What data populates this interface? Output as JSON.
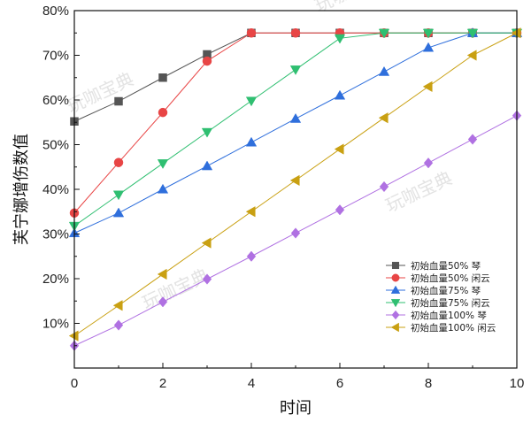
{
  "chart_data": {
    "type": "line",
    "title": "",
    "xlabel": "时间",
    "ylabel": "芙宁娜增伤数值",
    "xlim": [
      0,
      10
    ],
    "ylim": [
      0.0,
      0.8
    ],
    "x_ticks": [
      "0",
      "2",
      "4",
      "6",
      "8",
      "10"
    ],
    "y_ticks": [
      "10%",
      "20%",
      "30%",
      "40%",
      "50%",
      "60%",
      "70%",
      "80%"
    ],
    "grid": false,
    "legend_position": "lower-right",
    "series": [
      {
        "name": "初始血量50% 琴",
        "color": "#555555",
        "marker": "square",
        "x": [
          0,
          1,
          2,
          3,
          4,
          5,
          6,
          7,
          8,
          9,
          10
        ],
        "y": [
          0.552,
          0.597,
          0.65,
          0.702,
          0.75,
          0.75,
          0.75,
          0.75,
          0.75,
          0.75,
          0.75
        ]
      },
      {
        "name": "初始血量50% 闲云",
        "color": "#e84545",
        "marker": "circle",
        "x": [
          0,
          1,
          2,
          3,
          4,
          5,
          6,
          7,
          8,
          9,
          10
        ],
        "y": [
          0.347,
          0.46,
          0.572,
          0.687,
          0.75,
          0.75,
          0.75,
          0.75,
          0.75,
          0.75,
          0.75
        ]
      },
      {
        "name": "初始血量75% 琴",
        "color": "#2f6fdc",
        "marker": "triangle-up",
        "x": [
          0,
          1,
          2,
          3,
          4,
          5,
          6,
          7,
          8,
          9,
          10
        ],
        "y": [
          0.302,
          0.347,
          0.4,
          0.452,
          0.505,
          0.558,
          0.61,
          0.663,
          0.717,
          0.75,
          0.75
        ]
      },
      {
        "name": "初始血量75% 闲云",
        "color": "#2fbf71",
        "marker": "triangle-down",
        "x": [
          0,
          1,
          2,
          3,
          4,
          5,
          6,
          7,
          8,
          9,
          10
        ],
        "y": [
          0.318,
          0.388,
          0.458,
          0.528,
          0.598,
          0.668,
          0.738,
          0.75,
          0.75,
          0.75,
          0.75
        ]
      },
      {
        "name": "初始血量100% 琴",
        "color": "#b071e2",
        "marker": "diamond",
        "x": [
          0,
          1,
          2,
          3,
          4,
          5,
          6,
          7,
          8,
          9,
          10
        ],
        "y": [
          0.05,
          0.096,
          0.148,
          0.199,
          0.25,
          0.302,
          0.354,
          0.406,
          0.459,
          0.512,
          0.565
        ]
      },
      {
        "name": "初始血量100% 闲云",
        "color": "#c9a012",
        "marker": "triangle-left",
        "x": [
          0,
          1,
          2,
          3,
          4,
          5,
          6,
          7,
          8,
          9,
          10
        ],
        "y": [
          0.072,
          0.14,
          0.21,
          0.28,
          0.35,
          0.42,
          0.49,
          0.56,
          0.63,
          0.7,
          0.75
        ]
      }
    ]
  },
  "watermarks": [
    "玩咖宝典",
    "玩咖宝典",
    "玩咖宝典",
    "玩咖宝典"
  ]
}
